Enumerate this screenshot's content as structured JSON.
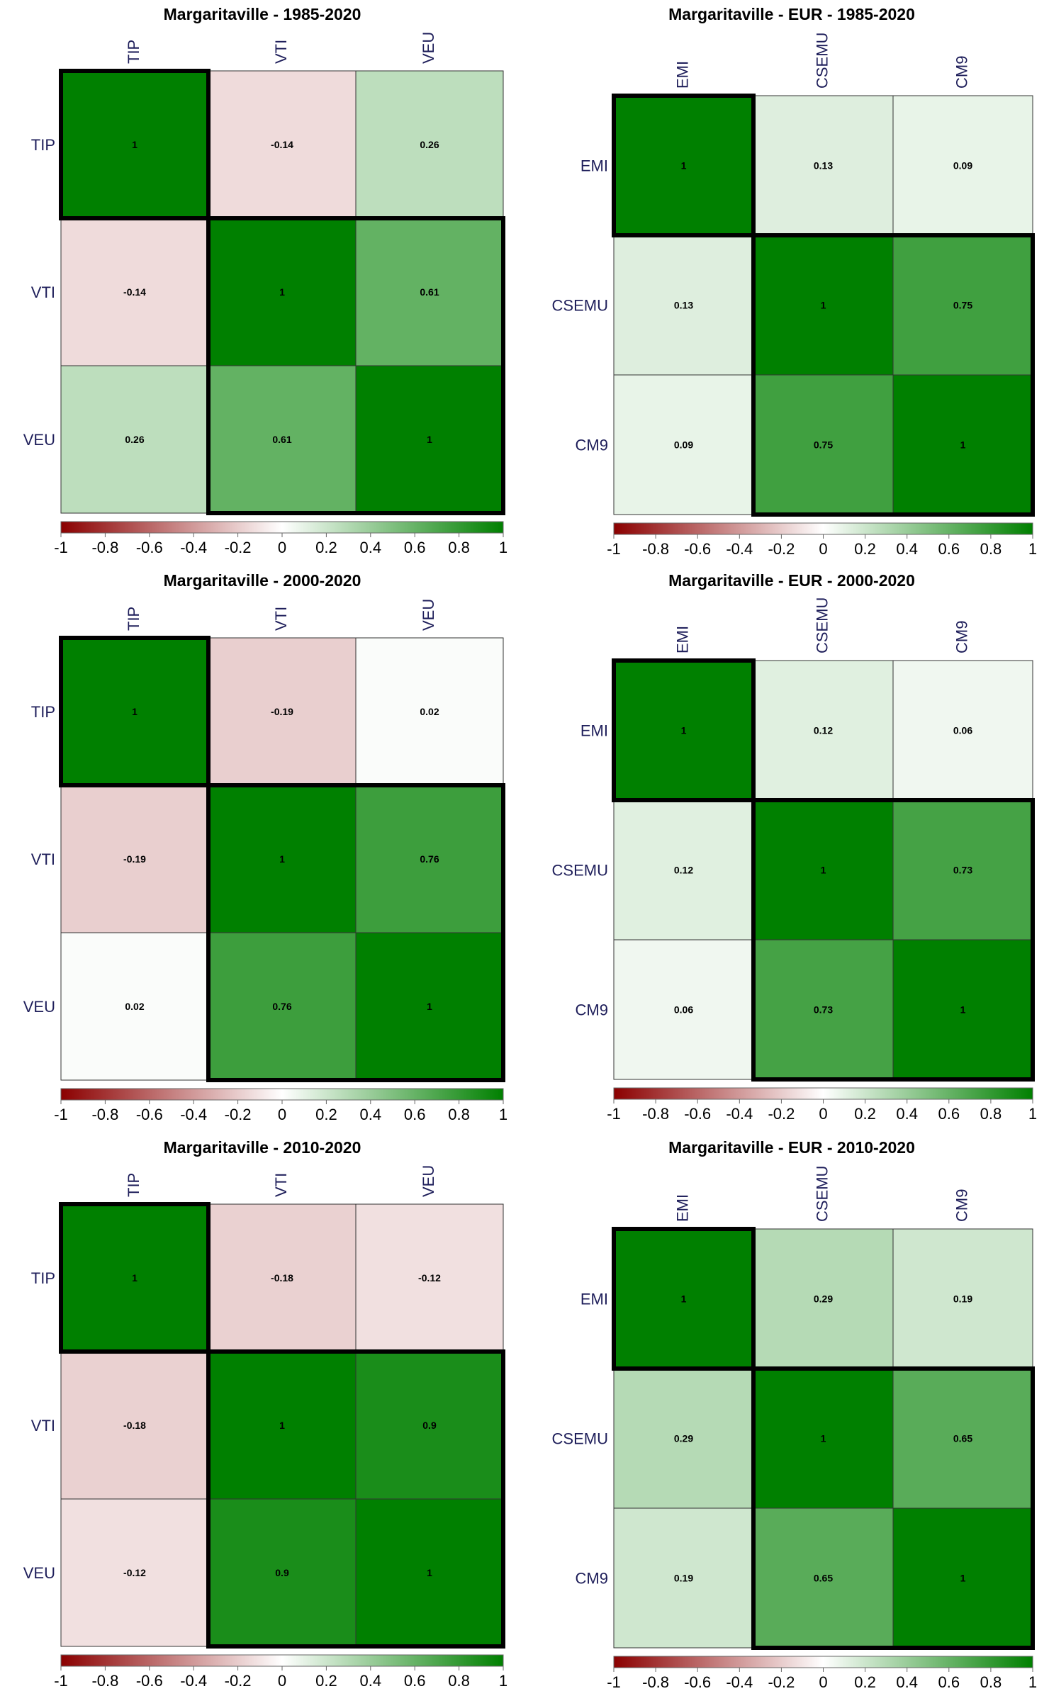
{
  "colors": {
    "negative": "#8b0000",
    "zero": "#ffffff",
    "positive": "#008000",
    "label": "#1e1e5a",
    "border": "#000000"
  },
  "legend": {
    "ticks": [
      "-1",
      "-0.8",
      "-0.6",
      "-0.4",
      "-0.2",
      "0",
      "0.2",
      "0.4",
      "0.6",
      "0.8",
      "1"
    ]
  },
  "chart_data": [
    {
      "type": "heatmap",
      "title": "Margaritaville - 1985-2020",
      "labels": [
        "TIP",
        "VTI",
        "VEU"
      ],
      "matrix": [
        [
          1,
          -0.14,
          0.26
        ],
        [
          -0.14,
          1,
          0.61
        ],
        [
          0.26,
          0.61,
          1
        ]
      ],
      "cell_labels": [
        [
          "1",
          "-0.14",
          "0.26"
        ],
        [
          "-0.14",
          "1",
          "0.61"
        ],
        [
          "0.26",
          "0.61",
          "1"
        ]
      ],
      "clusters": [
        [
          0,
          0
        ],
        [
          1,
          2
        ]
      ],
      "color_range": [
        -1,
        1
      ]
    },
    {
      "type": "heatmap",
      "title": "Margaritaville - EUR - 1985-2020",
      "labels": [
        "EMI",
        "CSEMU",
        "CM9"
      ],
      "matrix": [
        [
          1,
          0.13,
          0.09
        ],
        [
          0.13,
          1,
          0.75
        ],
        [
          0.09,
          0.75,
          1
        ]
      ],
      "cell_labels": [
        [
          "1",
          "0.13",
          "0.09"
        ],
        [
          "0.13",
          "1",
          "0.75"
        ],
        [
          "0.09",
          "0.75",
          "1"
        ]
      ],
      "clusters": [
        [
          0,
          0
        ],
        [
          1,
          2
        ]
      ],
      "color_range": [
        -1,
        1
      ]
    },
    {
      "type": "heatmap",
      "title": "Margaritaville - 2000-2020",
      "labels": [
        "TIP",
        "VTI",
        "VEU"
      ],
      "matrix": [
        [
          1,
          -0.19,
          0.02
        ],
        [
          -0.19,
          1,
          0.76
        ],
        [
          0.02,
          0.76,
          1
        ]
      ],
      "cell_labels": [
        [
          "1",
          "-0.19",
          "0.02"
        ],
        [
          "-0.19",
          "1",
          "0.76"
        ],
        [
          "0.02",
          "0.76",
          "1"
        ]
      ],
      "clusters": [
        [
          0,
          0
        ],
        [
          1,
          2
        ]
      ],
      "color_range": [
        -1,
        1
      ]
    },
    {
      "type": "heatmap",
      "title": "Margaritaville - EUR - 2000-2020",
      "labels": [
        "EMI",
        "CSEMU",
        "CM9"
      ],
      "matrix": [
        [
          1,
          0.12,
          0.06
        ],
        [
          0.12,
          1,
          0.73
        ],
        [
          0.06,
          0.73,
          1
        ]
      ],
      "cell_labels": [
        [
          "1",
          "0.12",
          "0.06"
        ],
        [
          "0.12",
          "1",
          "0.73"
        ],
        [
          "0.06",
          "0.73",
          "1"
        ]
      ],
      "clusters": [
        [
          0,
          0
        ],
        [
          1,
          2
        ]
      ],
      "color_range": [
        -1,
        1
      ]
    },
    {
      "type": "heatmap",
      "title": "Margaritaville - 2010-2020",
      "labels": [
        "TIP",
        "VTI",
        "VEU"
      ],
      "matrix": [
        [
          1,
          -0.18,
          -0.12
        ],
        [
          -0.18,
          1,
          0.9
        ],
        [
          -0.12,
          0.9,
          1
        ]
      ],
      "cell_labels": [
        [
          "1",
          "-0.18",
          "-0.12"
        ],
        [
          "-0.18",
          "1",
          "0.9"
        ],
        [
          "-0.12",
          "0.9",
          "1"
        ]
      ],
      "clusters": [
        [
          0,
          0
        ],
        [
          1,
          2
        ]
      ],
      "color_range": [
        -1,
        1
      ]
    },
    {
      "type": "heatmap",
      "title": "Margaritaville - EUR - 2010-2020",
      "labels": [
        "EMI",
        "CSEMU",
        "CM9"
      ],
      "matrix": [
        [
          1,
          0.29,
          0.19
        ],
        [
          0.29,
          1,
          0.65
        ],
        [
          0.19,
          0.65,
          1
        ]
      ],
      "cell_labels": [
        [
          "1",
          "0.29",
          "0.19"
        ],
        [
          "0.29",
          "1",
          "0.65"
        ],
        [
          "0.19",
          "0.65",
          "1"
        ]
      ],
      "clusters": [
        [
          0,
          0
        ],
        [
          1,
          2
        ]
      ],
      "color_range": [
        -1,
        1
      ]
    }
  ]
}
